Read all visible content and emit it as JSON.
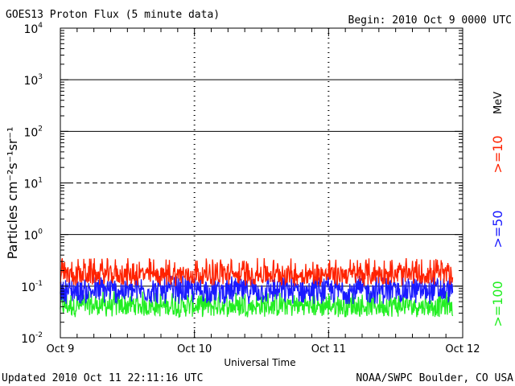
{
  "chart_data": {
    "type": "line",
    "title": "GOES13 Proton Flux (5 minute data)",
    "begin_label": "Begin: 2010 Oct 9 0000 UTC",
    "xlabel": "Universal Time",
    "ylabel": "Particles cm⁻²s⁻¹sr⁻¹",
    "units_label": "MeV",
    "updated": "Updated 2010 Oct 11 22:11:16 UTC",
    "credit": "NOAA/SWPC Boulder, CO USA",
    "x_ticks": [
      "Oct 9",
      "Oct 10",
      "Oct 11",
      "Oct 12"
    ],
    "y_scale": "log",
    "ylim": [
      0.01,
      10000
    ],
    "y_ticks": [
      {
        "base": "10",
        "exp": "4"
      },
      {
        "base": "10",
        "exp": "3"
      },
      {
        "base": "10",
        "exp": "2"
      },
      {
        "base": "10",
        "exp": "1"
      },
      {
        "base": "10",
        "exp": "0"
      },
      {
        "base": "10",
        "exp": "-1"
      },
      {
        "base": "10",
        "exp": "-2"
      }
    ],
    "threshold_lines": [
      {
        "value": 1000,
        "style": "solid"
      },
      {
        "value": 100,
        "style": "solid"
      },
      {
        "value": 10,
        "style": "dashed"
      },
      {
        "value": 1,
        "style": "solid"
      },
      {
        "value": 0.1,
        "style": "solid"
      }
    ],
    "series": [
      {
        "name": ">=10",
        "color": "#ff2200",
        "typical": 0.16,
        "range": [
          0.1,
          0.35
        ]
      },
      {
        "name": ">=50",
        "color": "#1a1aff",
        "typical": 0.08,
        "range": [
          0.045,
          0.16
        ]
      },
      {
        "name": ">=100",
        "color": "#22ee22",
        "typical": 0.04,
        "range": [
          0.025,
          0.08
        ]
      }
    ]
  }
}
